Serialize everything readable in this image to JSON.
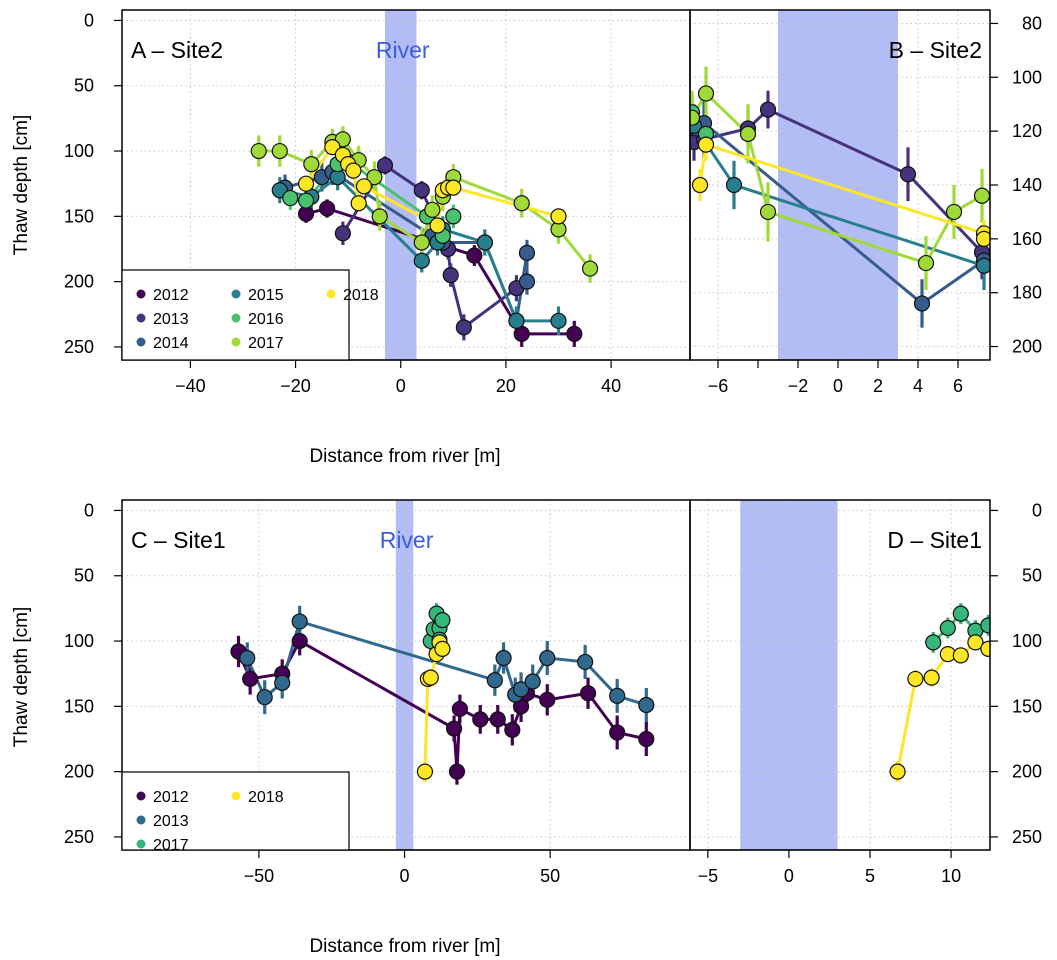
{
  "shared": {
    "ylabel": "Thaw depth [cm]",
    "xlabel": "Distance from river [m]",
    "river_label": "River",
    "river_color": "#b3bdf5",
    "river_text_color": "#3d5ce0"
  },
  "year_colors": {
    "2012": "#440154",
    "2013": "#46337e",
    "2014": "#365c8d",
    "2015": "#277f8e",
    "2016": "#4ac16d",
    "2017": "#a0da39",
    "2018": "#fde725"
  },
  "year_colors_site1": {
    "2012": "#440154",
    "2013": "#31688e",
    "2017": "#35b779",
    "2018": "#fde725"
  },
  "chart_data": [
    {
      "panel": "A",
      "type": "scatter",
      "title": "A – Site2",
      "xlabel": "Distance from river [m]",
      "ylabel": "Thaw depth [cm]",
      "xlim": [
        -53,
        55
      ],
      "ylim": [
        260,
        -8
      ],
      "xticks": [
        -40,
        -20,
        0,
        20,
        40
      ],
      "yticks": [
        0,
        50,
        100,
        150,
        200,
        250
      ],
      "river": [
        -3,
        3
      ],
      "river_label": "River",
      "grid": true,
      "legend_position": "bottom-left",
      "legend": [
        "2012",
        "2013",
        "2014",
        "2015",
        "2016",
        "2017",
        "2018"
      ],
      "series": [
        {
          "name": "2012",
          "x": [
            -18,
            -14,
            14,
            23,
            33
          ],
          "y": [
            148,
            144,
            180,
            240,
            240
          ],
          "err": [
            14,
            14,
            16,
            20,
            20
          ]
        },
        {
          "name": "2013",
          "x": [
            -11,
            -3,
            4,
            9,
            9.5,
            12,
            22
          ],
          "y": [
            163,
            111,
            130,
            175,
            195,
            235,
            205
          ],
          "err": [
            18,
            14,
            14,
            16,
            18,
            20,
            20
          ]
        },
        {
          "name": "2014",
          "x": [
            -22,
            -15,
            -13,
            6,
            8,
            16,
            22,
            24,
            24
          ],
          "y": [
            128,
            120,
            116,
            165,
            170,
            170,
            230,
            178,
            200
          ],
          "err": [
            20,
            22,
            20,
            16,
            18,
            20,
            22,
            20,
            20
          ]
        },
        {
          "name": "2015",
          "x": [
            -23,
            -17,
            -12,
            4,
            7,
            8,
            16,
            22,
            30
          ],
          "y": [
            130,
            135,
            120,
            184,
            170,
            160,
            170,
            230,
            230
          ],
          "err": [
            20,
            22,
            20,
            18,
            20,
            20,
            20,
            22,
            22
          ]
        },
        {
          "name": "2016",
          "x": [
            -21,
            -18,
            -12,
            -10,
            5,
            8,
            10
          ],
          "y": [
            136,
            138,
            110,
            108,
            150,
            165,
            150
          ],
          "err": [
            18,
            20,
            18,
            18,
            18,
            18,
            18
          ]
        },
        {
          "name": "2017",
          "x": [
            -27,
            -23,
            -17,
            -13,
            -11,
            -8,
            -5,
            -4,
            4,
            6,
            8,
            10,
            23,
            30,
            36
          ],
          "y": [
            100,
            100,
            110,
            93,
            91,
            107,
            120,
            150,
            170,
            145,
            135,
            120,
            140,
            160,
            190
          ],
          "err": [
            24,
            24,
            22,
            20,
            20,
            22,
            24,
            22,
            22,
            22,
            22,
            20,
            22,
            22,
            22
          ]
        },
        {
          "name": "2018",
          "x": [
            -18,
            -13,
            -11,
            -10,
            -9,
            -8,
            -7,
            7,
            8,
            9,
            10,
            30
          ],
          "y": [
            125,
            97,
            103,
            110,
            115,
            140,
            127,
            157,
            130,
            128,
            128,
            150
          ],
          "err": [
            10,
            10,
            10,
            10,
            10,
            10,
            10,
            10,
            10,
            10,
            10,
            10
          ]
        }
      ]
    },
    {
      "panel": "B",
      "type": "scatter",
      "title": "B – Site2",
      "xlim": [
        -7.4,
        7.6
      ],
      "ylim": [
        205,
        75
      ],
      "xticks": [
        -6,
        -2,
        0,
        2,
        4,
        6
      ],
      "extra_xticks": [
        -4
      ],
      "yticks": [
        80,
        100,
        120,
        140,
        160,
        180,
        200
      ],
      "river": [
        -3,
        3
      ],
      "grid": true,
      "series": [
        {
          "name": "2013",
          "x": [
            -7.2,
            -6.7,
            -4.5,
            -3.5,
            3.5,
            7.2
          ],
          "y": [
            124,
            123,
            119,
            112,
            136,
            165
          ],
          "err": [
            14,
            14,
            14,
            14,
            20,
            20
          ]
        },
        {
          "name": "2014",
          "x": [
            -7.1,
            -6.7,
            4.2,
            7.3
          ],
          "y": [
            119,
            117,
            184,
            168
          ],
          "err": [
            16,
            16,
            18,
            18
          ]
        },
        {
          "name": "2015",
          "x": [
            -7.2,
            -5.2,
            7.3
          ],
          "y": [
            118,
            140,
            170
          ],
          "err": [
            16,
            18,
            18
          ]
        },
        {
          "name": "2016",
          "x": [
            -7.3,
            -6.6
          ],
          "y": [
            113,
            121
          ],
          "err": [
            14,
            14
          ]
        },
        {
          "name": "2017",
          "x": [
            -7.3,
            -6.6,
            -4.5,
            -3.5,
            4.4,
            5.8,
            7.2
          ],
          "y": [
            115,
            106,
            121,
            150,
            169,
            150,
            144
          ],
          "err": [
            20,
            20,
            22,
            22,
            20,
            20,
            20
          ]
        },
        {
          "name": "2018",
          "x": [
            -6.9,
            -6.6,
            7.3,
            7.3
          ],
          "y": [
            140,
            125,
            158,
            160
          ],
          "err": [
            12,
            12,
            10,
            10
          ]
        }
      ]
    },
    {
      "panel": "C",
      "type": "scatter",
      "title": "C – Site1",
      "xlabel": "Distance from river [m]",
      "ylabel": "Thaw depth [cm]",
      "xlim": [
        -97,
        98
      ],
      "ylim": [
        260,
        -8
      ],
      "xticks": [
        -50,
        0,
        50
      ],
      "yticks": [
        0,
        50,
        100,
        150,
        200,
        250
      ],
      "river": [
        -3,
        3
      ],
      "river_label": "River",
      "grid": true,
      "legend_position": "bottom-left",
      "legend": [
        "2012",
        "2013",
        "2017",
        "2018"
      ],
      "series": [
        {
          "name": "2012",
          "x": [
            -57,
            -53,
            -42,
            -36,
            17,
            18,
            19,
            26,
            32,
            37,
            40,
            42,
            49,
            63,
            73,
            83
          ],
          "y": [
            108,
            129,
            125,
            100,
            167,
            200,
            152,
            160,
            160,
            168,
            150,
            140,
            145,
            140,
            170,
            175
          ],
          "err": [
            24,
            24,
            22,
            22,
            20,
            20,
            22,
            22,
            22,
            24,
            24,
            22,
            24,
            24,
            26,
            26
          ]
        },
        {
          "name": "2013",
          "x": [
            -54,
            -48,
            -42,
            -36,
            31,
            34,
            38,
            40,
            44,
            49,
            62,
            73,
            83
          ],
          "y": [
            113,
            143,
            132,
            85,
            130,
            113,
            141,
            137,
            131,
            113,
            116,
            142,
            149
          ],
          "err": [
            24,
            26,
            24,
            24,
            24,
            24,
            26,
            26,
            26,
            26,
            26,
            26,
            26
          ]
        },
        {
          "name": "2017",
          "x": [
            9,
            10,
            11,
            12,
            12,
            13
          ],
          "y": [
            100,
            91,
            79,
            90,
            99,
            84
          ],
          "err": [
            16,
            16,
            16,
            16,
            16,
            16
          ]
        },
        {
          "name": "2018",
          "x": [
            7,
            8,
            9,
            11,
            12,
            13
          ],
          "y": [
            200,
            129,
            128,
            110,
            101,
            106
          ],
          "err": [
            16,
            14,
            14,
            12,
            12,
            12
          ]
        }
      ]
    },
    {
      "panel": "D",
      "type": "scatter",
      "title": "D – Site1",
      "xlim": [
        -6.1,
        12.4
      ],
      "ylim": [
        260,
        -8
      ],
      "xticks": [
        -5,
        0,
        5,
        10
      ],
      "yticks": [
        0,
        50,
        100,
        150,
        200,
        250
      ],
      "river": [
        -3,
        3
      ],
      "grid": true,
      "series": [
        {
          "name": "2017",
          "x": [
            8.9,
            9.8,
            10.6,
            11.5,
            12.3
          ],
          "y": [
            101,
            90,
            79,
            92,
            88
          ],
          "err": [
            16,
            16,
            16,
            16,
            16
          ]
        },
        {
          "name": "2018",
          "x": [
            6.7,
            7.8,
            8.8,
            9.8,
            10.6,
            11.5,
            12.3
          ],
          "y": [
            200,
            129,
            128,
            110,
            111,
            101,
            106
          ],
          "err": [
            16,
            14,
            14,
            12,
            12,
            12,
            12
          ]
        }
      ]
    }
  ]
}
